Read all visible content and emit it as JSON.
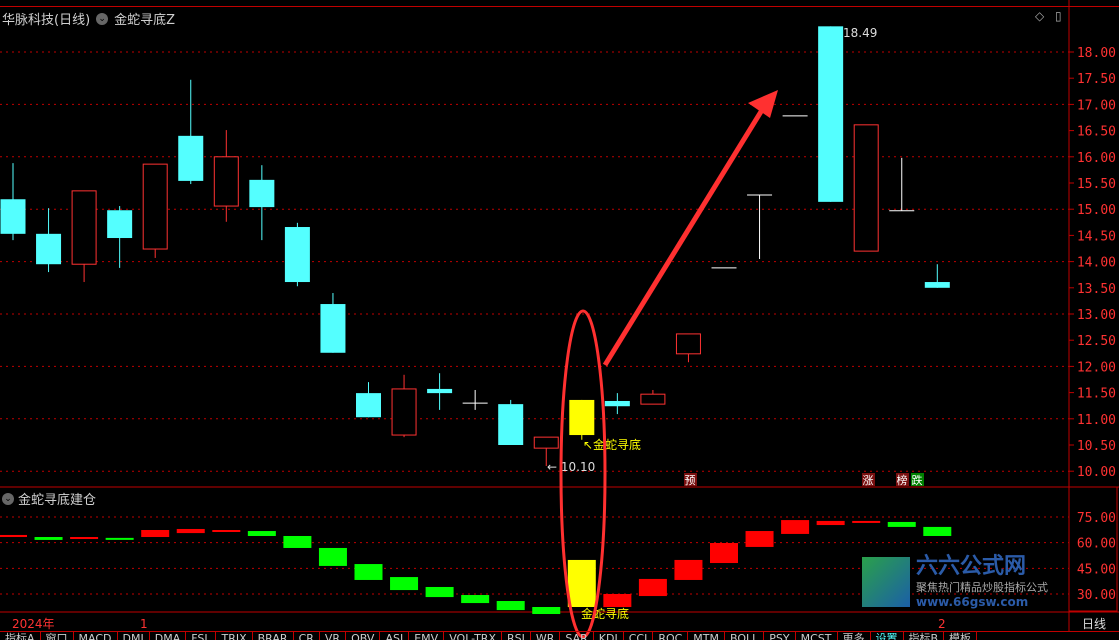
{
  "header": {
    "stock": "华脉科技(日线)",
    "indicator": "金蛇寻底Z"
  },
  "subpanel": {
    "title": "金蛇寻底建仓"
  },
  "price_axis": [
    "18.00",
    "17.50",
    "17.00",
    "16.50",
    "16.00",
    "15.50",
    "15.00",
    "14.50",
    "14.00",
    "13.50",
    "13.00",
    "12.50",
    "12.00",
    "11.50",
    "11.00",
    "10.50",
    "10.00"
  ],
  "sub_axis": [
    "75.00",
    "60.00",
    "45.00",
    "30.00"
  ],
  "candles": [
    {
      "o": 15.19,
      "c": 14.53,
      "h": 15.88,
      "l": 14.41
    },
    {
      "o": 14.53,
      "c": 13.95,
      "h": 15.02,
      "l": 13.8
    },
    {
      "o": 13.95,
      "c": 15.35,
      "h": 15.35,
      "l": 13.61
    },
    {
      "o": 14.98,
      "c": 14.45,
      "h": 15.06,
      "l": 13.88
    },
    {
      "o": 14.24,
      "c": 15.86,
      "h": 15.86,
      "l": 14.07
    },
    {
      "o": 16.4,
      "c": 15.54,
      "h": 17.47,
      "l": 15.48
    },
    {
      "o": 15.06,
      "c": 16.0,
      "h": 16.51,
      "l": 14.76
    },
    {
      "o": 15.56,
      "c": 15.04,
      "h": 15.84,
      "l": 14.41
    },
    {
      "o": 14.66,
      "c": 13.61,
      "h": 14.74,
      "l": 13.53
    },
    {
      "o": 13.19,
      "c": 12.26,
      "h": 13.4,
      "l": 12.26
    },
    {
      "o": 11.49,
      "c": 11.03,
      "h": 11.7,
      "l": 11.03
    },
    {
      "o": 10.69,
      "c": 11.57,
      "h": 11.84,
      "l": 10.65
    },
    {
      "o": 11.57,
      "c": 11.49,
      "h": 11.87,
      "l": 11.17
    },
    {
      "o": 11.3,
      "c": 11.3,
      "h": 11.55,
      "l": 11.17
    },
    {
      "o": 11.28,
      "c": 10.5,
      "h": 11.36,
      "l": 10.5
    },
    {
      "o": 10.44,
      "c": 10.65,
      "h": 10.65,
      "l": 10.1
    },
    {
      "o": 10.69,
      "c": 11.36,
      "h": 11.36,
      "l": 10.6,
      "signal": true
    },
    {
      "o": 11.34,
      "c": 11.24,
      "h": 11.49,
      "l": 11.09
    },
    {
      "o": 11.28,
      "c": 11.47,
      "h": 11.55,
      "l": 11.28
    },
    {
      "o": 12.24,
      "c": 12.62,
      "h": 12.62,
      "l": 12.08
    },
    {
      "o": 13.88,
      "c": 13.88,
      "h": 13.88,
      "l": 13.88
    },
    {
      "o": 15.27,
      "c": 15.27,
      "h": 15.27,
      "l": 14.05
    },
    {
      "o": 16.78,
      "c": 16.78,
      "h": 16.78,
      "l": 16.78
    },
    {
      "o": 18.49,
      "c": 15.14,
      "h": 18.49,
      "l": 15.14
    },
    {
      "o": 14.2,
      "c": 16.61,
      "h": 16.61,
      "l": 14.2
    },
    {
      "o": 14.97,
      "c": 14.97,
      "h": 15.98,
      "l": 14.97
    },
    {
      "o": 13.61,
      "c": 13.5,
      "h": 13.95,
      "l": 13.5
    }
  ],
  "sub_bars": [
    {
      "a": 64.5,
      "b": 63.3,
      "t": "up"
    },
    {
      "a": 63.3,
      "b": 61.6,
      "t": "down"
    },
    {
      "a": 63.3,
      "b": 62.8,
      "t": "up"
    },
    {
      "a": 62.8,
      "b": 62.1,
      "t": "down"
    },
    {
      "a": 67.4,
      "b": 63.3,
      "t": "up"
    },
    {
      "a": 68.0,
      "b": 65.6,
      "t": "up"
    },
    {
      "a": 67.4,
      "b": 66.8,
      "t": "up"
    },
    {
      "a": 66.8,
      "b": 63.9,
      "t": "down"
    },
    {
      "a": 63.9,
      "b": 56.9,
      "t": "down"
    },
    {
      "a": 56.9,
      "b": 46.4,
      "t": "down"
    },
    {
      "a": 47.5,
      "b": 38.2,
      "t": "down"
    },
    {
      "a": 39.9,
      "b": 32.3,
      "t": "down"
    },
    {
      "a": 34.1,
      "b": 28.2,
      "t": "down"
    },
    {
      "a": 29.4,
      "b": 24.7,
      "t": "down"
    },
    {
      "a": 25.9,
      "b": 20.6,
      "t": "down"
    },
    {
      "a": 22.4,
      "b": 18.3,
      "t": "down"
    },
    {
      "a": 49.9,
      "b": 22.4,
      "t": "signal"
    },
    {
      "a": 30.0,
      "b": 22.4,
      "t": "up"
    },
    {
      "a": 38.8,
      "b": 28.8,
      "t": "up"
    },
    {
      "a": 49.9,
      "b": 38.2,
      "t": "up"
    },
    {
      "a": 59.8,
      "b": 48.1,
      "t": "up"
    },
    {
      "a": 66.8,
      "b": 57.5,
      "t": "up"
    },
    {
      "a": 73.2,
      "b": 65.1,
      "t": "up"
    },
    {
      "a": 72.7,
      "b": 70.3,
      "t": "up"
    },
    {
      "a": 72.7,
      "b": 72.1,
      "t": "up"
    },
    {
      "a": 72.1,
      "b": 69.2,
      "t": "down"
    },
    {
      "a": 69.2,
      "b": 63.9,
      "t": "down"
    }
  ],
  "labels": {
    "high": "18.49",
    "low": "10.10",
    "signal_main": "↖金蛇寻底",
    "signal_sub": "金蛇寻底",
    "pre": "预",
    "rise": "涨",
    "rank": "榜",
    "fall": "跌"
  },
  "date_axis": {
    "year": "2024年",
    "m1": "1",
    "m2": "2",
    "period": "日线"
  },
  "tabs": [
    "指标A",
    "窗口",
    "MACD",
    "DMI",
    "DMA",
    "FSL",
    "TRIX",
    "BRAR",
    "CR",
    "VR",
    "OBV",
    "ASI",
    "EMV",
    "VOL-TRX",
    "RSI",
    "WR",
    "SAR",
    "KDJ",
    "CCI",
    "ROC",
    "MTM",
    "BOLL",
    "PSY",
    "MCST",
    "更多",
    "设置",
    "指标B",
    "模板"
  ],
  "logo": {
    "name": "六六公式网",
    "slogan": "聚焦热门精品炒股指标公式",
    "url": "www.66gsw.com"
  },
  "colors": {
    "up": "#ff3232",
    "down": "#54ffff",
    "signal": "#ffff00",
    "sub_up": "#ff0000",
    "sub_down": "#00ff00",
    "grid": "#c00000",
    "axis_text": "#ff3232"
  }
}
